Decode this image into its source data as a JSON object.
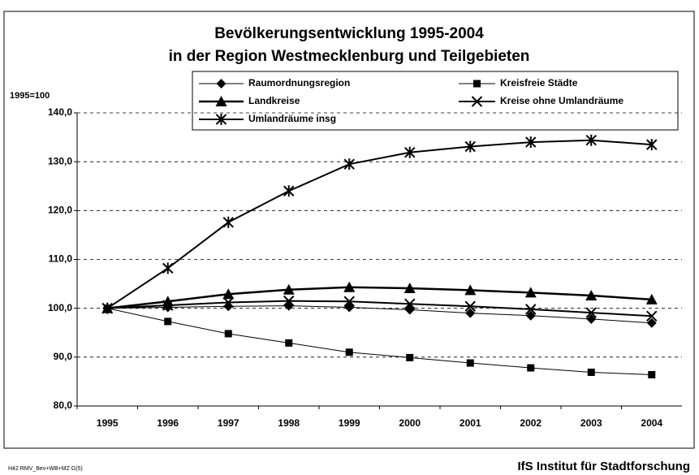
{
  "chart_data": {
    "type": "line",
    "title": "Bevölkerungsentwicklung 1995-2004",
    "subtitle": "in der Region Westmecklenburg und Teilgebieten",
    "y_label": "1995=100",
    "footer_left": "H42 RMV_Bev+WB+MZ  G(5)",
    "footer_right": "IfS Institut für Stadtforschung",
    "categories": [
      "1995",
      "1996",
      "1997",
      "1998",
      "1999",
      "2000",
      "2001",
      "2002",
      "2003",
      "2004"
    ],
    "series": [
      {
        "name": "Raumordnungsregion",
        "color": "#000000",
        "marker": "diamond",
        "line_width": 1,
        "values": [
          100,
          100.2,
          100.4,
          100.5,
          100.2,
          99.7,
          99.0,
          98.5,
          97.8,
          97.0
        ]
      },
      {
        "name": "Kreisfreie Städte",
        "color": "#000000",
        "marker": "square",
        "line_width": 1,
        "values": [
          100,
          97.3,
          94.8,
          92.9,
          91.0,
          89.9,
          88.8,
          87.8,
          86.9,
          86.4
        ]
      },
      {
        "name": "Landkreise",
        "color": "#000000",
        "marker": "triangle",
        "line_width": 2.5,
        "values": [
          100,
          101.4,
          102.9,
          103.8,
          104.3,
          104.1,
          103.7,
          103.2,
          102.6,
          101.8
        ]
      },
      {
        "name": "Kreise ohne Umlandräume",
        "color": "#000000",
        "marker": "x",
        "line_width": 2,
        "values": [
          100,
          100.6,
          101.2,
          101.5,
          101.4,
          100.9,
          100.4,
          99.8,
          99.1,
          98.4
        ]
      },
      {
        "name": "Umlandräume insg",
        "color": "#000000",
        "marker": "asterisk",
        "line_width": 2,
        "values": [
          100,
          108.2,
          117.6,
          124.0,
          129.5,
          131.9,
          133.1,
          134.0,
          134.4,
          133.5
        ]
      }
    ],
    "ylim": [
      80,
      140
    ],
    "yticks": [
      {
        "value": 80,
        "label": "80,0"
      },
      {
        "value": 90,
        "label": "90,0"
      },
      {
        "value": 100,
        "label": "100,0"
      },
      {
        "value": 110,
        "label": "110,0"
      },
      {
        "value": 120,
        "label": "120,0"
      },
      {
        "value": 130,
        "label": "130,0"
      },
      {
        "value": 140,
        "label": "140,0"
      }
    ],
    "grid": true
  }
}
